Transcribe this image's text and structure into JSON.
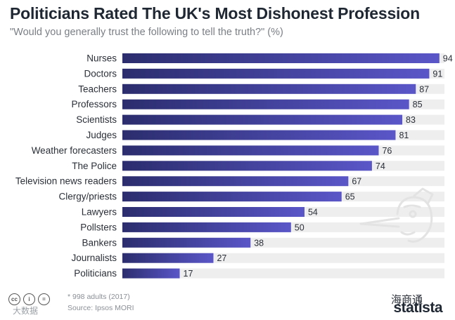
{
  "header": {
    "title": "Politicians Rated The UK's Most Dishonest Profession",
    "subtitle": "\"Would you generally trust the following to tell the truth?\" (%)"
  },
  "footer": {
    "note": "* 998 adults (2017)",
    "source": "Source: Ipsos MORI",
    "brand": "statista",
    "watermark": "海商通",
    "watermark_left": "大数据",
    "cc_icons": [
      "cc-icon",
      "attribution-icon",
      "noderivs-icon"
    ]
  },
  "colors": {
    "bar_start": "#2b2d6e",
    "bar_end": "#5a56c8",
    "track": "#eeeeee"
  },
  "chart_data": {
    "type": "bar",
    "orientation": "horizontal",
    "title": "Politicians Rated The UK's Most Dishonest Profession",
    "subtitle": "\"Would you generally trust the following to tell the truth?\" (%)",
    "categories": [
      "Nurses",
      "Doctors",
      "Teachers",
      "Professors",
      "Scientists",
      "Judges",
      "Weather forecasters",
      "The Police",
      "Television news readers",
      "Clergy/priests",
      "Lawyers",
      "Pollsters",
      "Bankers",
      "Journalists",
      "Politicians"
    ],
    "values": [
      94,
      91,
      87,
      85,
      83,
      81,
      76,
      74,
      67,
      65,
      54,
      50,
      38,
      27,
      17
    ],
    "xlim": [
      0,
      100
    ],
    "grid": false,
    "legend": "none"
  }
}
